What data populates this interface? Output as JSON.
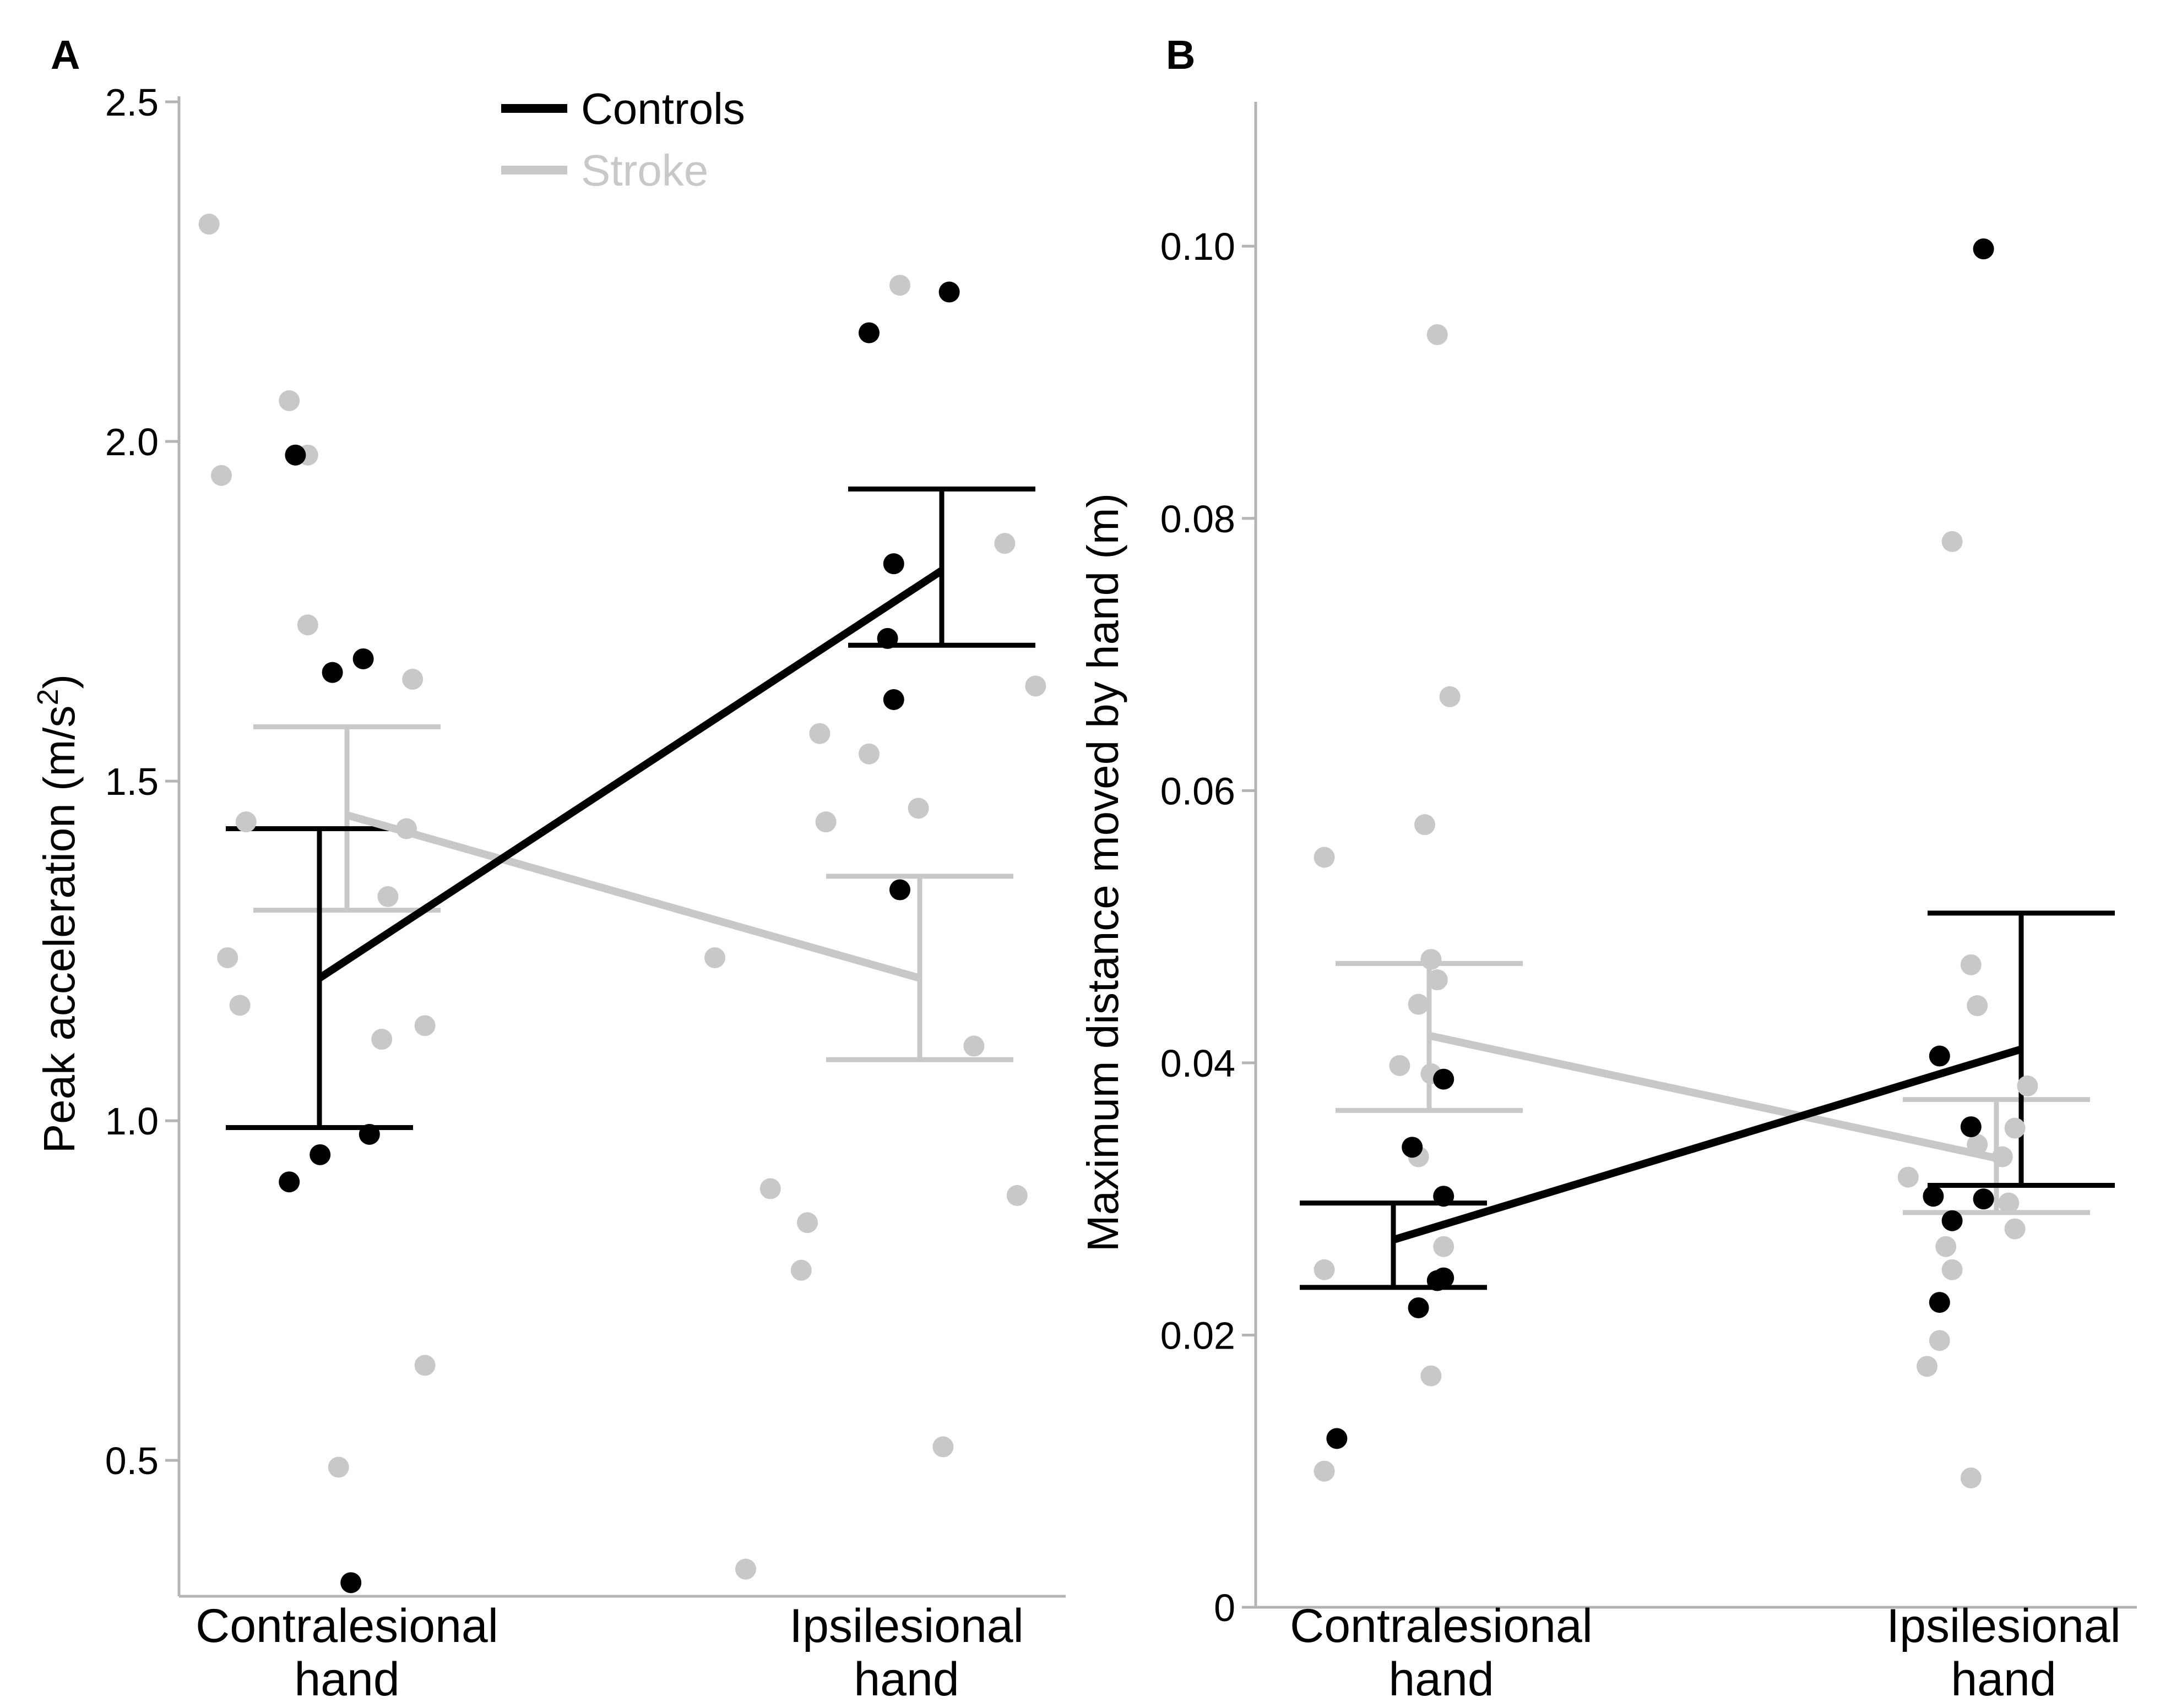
{
  "colors": {
    "controls": "#000000",
    "stroke": "#c8c8c8",
    "axis": "#b4b4b4"
  },
  "legend": {
    "controls": "Controls",
    "stroke": "Stroke"
  },
  "chart_data": [
    {
      "type": "scatter",
      "panel": "A",
      "ylabel_main": "Peak acceleration (m/s",
      "ylabel_sup": "2",
      "ylabel_end": ")",
      "ylim": [
        0.3,
        2.5
      ],
      "yticks": [
        0.5,
        1.0,
        1.5,
        2.0,
        2.5
      ],
      "ytick_labels": [
        "0.5",
        "1.0",
        "1.5",
        "2.0",
        "2.5"
      ],
      "categories": [
        {
          "line1": "Contralesional",
          "line2": "hand"
        },
        {
          "line1": "Ipsilesional",
          "line2": "hand"
        }
      ],
      "series": [
        {
          "name": "Controls",
          "means": [
            1.21,
            1.81
          ],
          "errors": [
            [
              0.99,
              1.43
            ],
            [
              1.7,
              1.93
            ]
          ],
          "points": [
            {
              "x": 0.47,
              "y": 1.98
            },
            {
              "x": 0.53,
              "y": 1.66
            },
            {
              "x": 0.58,
              "y": 1.68
            },
            {
              "x": 0.46,
              "y": 0.91
            },
            {
              "x": 0.51,
              "y": 0.95
            },
            {
              "x": 0.59,
              "y": 0.98
            },
            {
              "x": 0.56,
              "y": 0.32
            },
            {
              "x": 1.4,
              "y": 2.16
            },
            {
              "x": 1.53,
              "y": 2.22
            },
            {
              "x": 1.44,
              "y": 1.82
            },
            {
              "x": 1.43,
              "y": 1.71
            },
            {
              "x": 1.44,
              "y": 1.62
            },
            {
              "x": 1.45,
              "y": 1.34
            }
          ]
        },
        {
          "name": "Stroke",
          "means": [
            1.45,
            1.21
          ],
          "errors": [
            [
              1.31,
              1.58
            ],
            [
              1.09,
              1.36
            ]
          ],
          "points": [
            {
              "x": 0.33,
              "y": 2.32
            },
            {
              "x": 0.35,
              "y": 1.95
            },
            {
              "x": 0.46,
              "y": 2.06
            },
            {
              "x": 0.49,
              "y": 1.98
            },
            {
              "x": 0.49,
              "y": 1.73
            },
            {
              "x": 0.66,
              "y": 1.65
            },
            {
              "x": 0.39,
              "y": 1.44
            },
            {
              "x": 0.65,
              "y": 1.43
            },
            {
              "x": 0.62,
              "y": 1.33
            },
            {
              "x": 0.36,
              "y": 1.24
            },
            {
              "x": 0.38,
              "y": 1.17
            },
            {
              "x": 0.61,
              "y": 1.12
            },
            {
              "x": 0.68,
              "y": 1.14
            },
            {
              "x": 0.68,
              "y": 0.64
            },
            {
              "x": 0.54,
              "y": 0.49
            },
            {
              "x": 1.45,
              "y": 2.23
            },
            {
              "x": 1.62,
              "y": 1.85
            },
            {
              "x": 1.67,
              "y": 1.64
            },
            {
              "x": 1.32,
              "y": 1.57
            },
            {
              "x": 1.4,
              "y": 1.54
            },
            {
              "x": 1.33,
              "y": 1.44
            },
            {
              "x": 1.48,
              "y": 1.46
            },
            {
              "x": 1.15,
              "y": 1.24
            },
            {
              "x": 1.57,
              "y": 1.11
            },
            {
              "x": 1.24,
              "y": 0.9
            },
            {
              "x": 1.3,
              "y": 0.85
            },
            {
              "x": 1.29,
              "y": 0.78
            },
            {
              "x": 1.64,
              "y": 0.89
            },
            {
              "x": 1.52,
              "y": 0.52
            },
            {
              "x": 1.2,
              "y": 0.34
            }
          ]
        }
      ]
    },
    {
      "type": "scatter",
      "panel": "B",
      "ylabel_main": "Maximum distance moved by hand (m)",
      "ylim": [
        0,
        0.11
      ],
      "yticks": [
        0,
        0.02,
        0.04,
        0.06,
        0.08,
        0.1
      ],
      "ytick_labels": [
        "0",
        "0.02",
        "0.04",
        "0.06",
        "0.08",
        "0.10"
      ],
      "categories": [
        {
          "line1": "Contralesional",
          "line2": "hand"
        },
        {
          "line1": "Ipsilesional",
          "line2": "hand"
        }
      ],
      "series": [
        {
          "name": "Controls",
          "means": [
            0.027,
            0.041
          ],
          "errors": [
            [
              0.0235,
              0.0297
            ],
            [
              0.031,
              0.051
            ]
          ],
          "points": [
            {
              "x": 0.58,
              "y": 0.0388
            },
            {
              "x": 0.53,
              "y": 0.0338
            },
            {
              "x": 0.58,
              "y": 0.0302
            },
            {
              "x": 0.58,
              "y": 0.0242
            },
            {
              "x": 0.57,
              "y": 0.024
            },
            {
              "x": 0.54,
              "y": 0.022
            },
            {
              "x": 0.41,
              "y": 0.0124
            },
            {
              "x": 1.44,
              "y": 0.0998
            },
            {
              "x": 1.37,
              "y": 0.0405
            },
            {
              "x": 1.42,
              "y": 0.0353
            },
            {
              "x": 1.36,
              "y": 0.0302
            },
            {
              "x": 1.44,
              "y": 0.03
            },
            {
              "x": 1.39,
              "y": 0.0284
            },
            {
              "x": 1.37,
              "y": 0.0224
            }
          ]
        },
        {
          "name": "Stroke",
          "means": [
            0.042,
            0.033
          ],
          "errors": [
            [
              0.0365,
              0.0473
            ],
            [
              0.029,
              0.0373
            ]
          ],
          "points": [
            {
              "x": 0.57,
              "y": 0.0935
            },
            {
              "x": 0.59,
              "y": 0.0669
            },
            {
              "x": 0.55,
              "y": 0.0575
            },
            {
              "x": 0.39,
              "y": 0.0551
            },
            {
              "x": 0.56,
              "y": 0.0476
            },
            {
              "x": 0.57,
              "y": 0.0461
            },
            {
              "x": 0.54,
              "y": 0.0443
            },
            {
              "x": 0.51,
              "y": 0.0398
            },
            {
              "x": 0.56,
              "y": 0.0392
            },
            {
              "x": 0.54,
              "y": 0.0331
            },
            {
              "x": 0.58,
              "y": 0.0265
            },
            {
              "x": 0.39,
              "y": 0.0248
            },
            {
              "x": 0.56,
              "y": 0.017
            },
            {
              "x": 0.39,
              "y": 0.01
            },
            {
              "x": 1.39,
              "y": 0.0783
            },
            {
              "x": 1.42,
              "y": 0.0472
            },
            {
              "x": 1.43,
              "y": 0.0442
            },
            {
              "x": 1.51,
              "y": 0.0383
            },
            {
              "x": 1.49,
              "y": 0.0352
            },
            {
              "x": 1.47,
              "y": 0.0331
            },
            {
              "x": 1.43,
              "y": 0.034
            },
            {
              "x": 1.32,
              "y": 0.0316
            },
            {
              "x": 1.48,
              "y": 0.0297
            },
            {
              "x": 1.49,
              "y": 0.0278
            },
            {
              "x": 1.38,
              "y": 0.0265
            },
            {
              "x": 1.39,
              "y": 0.0248
            },
            {
              "x": 1.37,
              "y": 0.0196
            },
            {
              "x": 1.35,
              "y": 0.0177
            },
            {
              "x": 1.42,
              "y": 0.0095
            }
          ]
        }
      ]
    }
  ]
}
